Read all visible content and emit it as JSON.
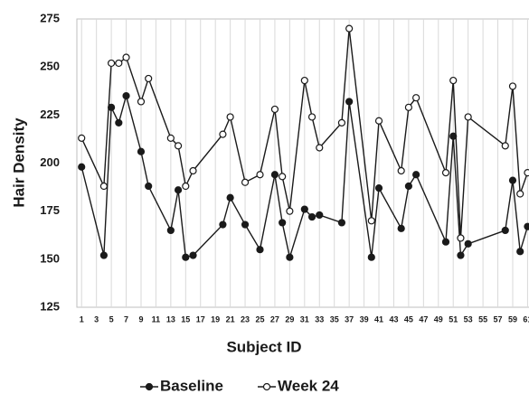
{
  "chart_data": {
    "type": "line",
    "xlabel": "Subject ID",
    "ylabel": "Hair Density",
    "x": [
      1,
      4,
      5,
      6,
      7,
      9,
      10,
      13,
      14,
      15,
      16,
      20,
      21,
      23,
      25,
      27,
      28,
      29,
      31,
      32,
      33,
      36,
      37,
      40,
      41,
      44,
      45,
      46,
      50,
      51,
      52,
      53,
      58,
      59,
      60,
      61
    ],
    "series": [
      {
        "name": "Baseline",
        "color": "#1a1a1a",
        "marker_fill": "#1a1a1a",
        "values": [
          198,
          152,
          229,
          221,
          235,
          206,
          188,
          165,
          186,
          151,
          152,
          168,
          182,
          168,
          155,
          194,
          169,
          151,
          176,
          172,
          173,
          169,
          232,
          151,
          187,
          166,
          188,
          194,
          159,
          214,
          152,
          158,
          165,
          191,
          154,
          167
        ]
      },
      {
        "name": "Week 24",
        "color": "#1a1a1a",
        "marker_fill": "#ffffff",
        "values": [
          213,
          188,
          252,
          252,
          255,
          232,
          244,
          213,
          209,
          188,
          196,
          215,
          224,
          190,
          194,
          228,
          193,
          175,
          243,
          224,
          208,
          221,
          270,
          170,
          222,
          196,
          229,
          234,
          195,
          243,
          161,
          224,
          209,
          240,
          184,
          195
        ]
      }
    ],
    "xlim": [
      0,
      62
    ],
    "ylim": [
      125,
      275
    ],
    "xticks": [
      1,
      3,
      5,
      7,
      9,
      11,
      13,
      15,
      17,
      19,
      21,
      23,
      25,
      27,
      29,
      31,
      33,
      35,
      37,
      39,
      41,
      43,
      45,
      47,
      49,
      51,
      53,
      55,
      57,
      59,
      61
    ],
    "yticks": [
      125,
      150,
      175,
      200,
      225,
      250,
      275
    ],
    "grid": "x",
    "legend": "bottom"
  }
}
